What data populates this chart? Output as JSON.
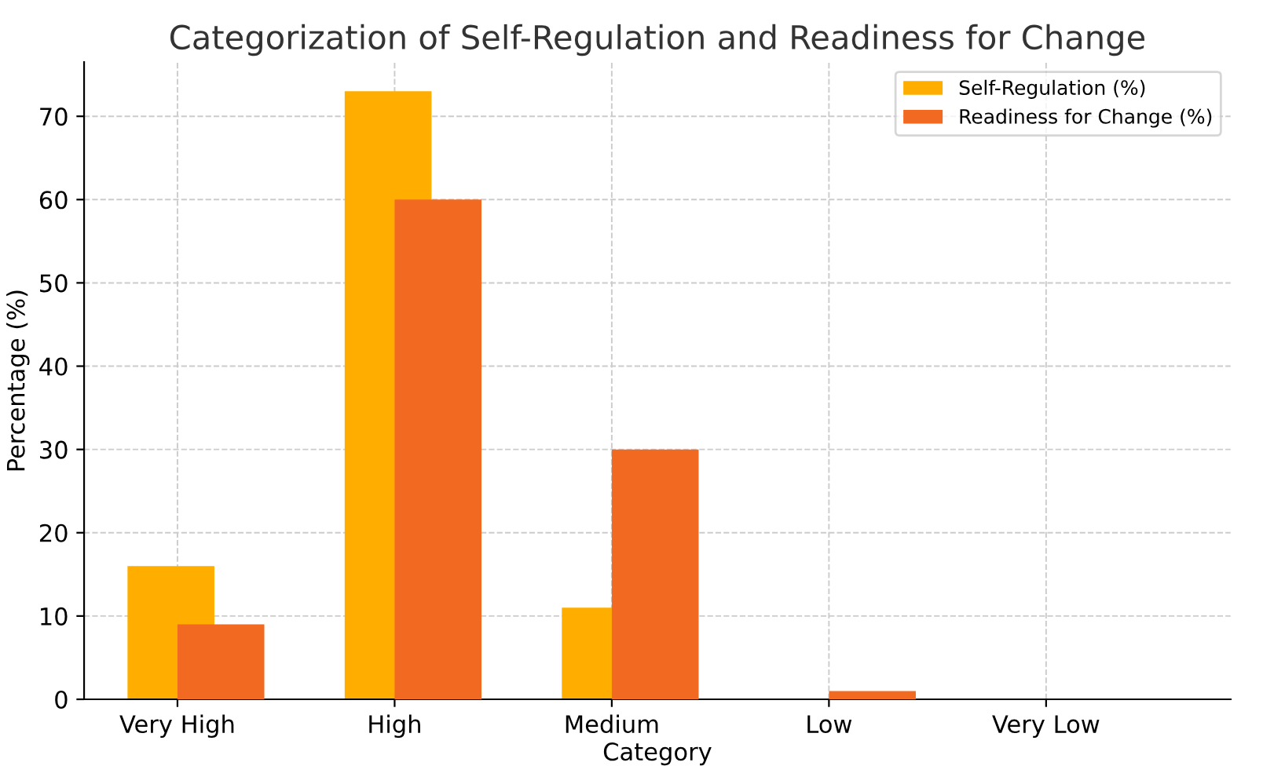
{
  "chart_data": {
    "type": "bar",
    "title": "Categorization of Self-Regulation and Readiness for Change",
    "xlabel": "Category",
    "ylabel": "Percentage (%)",
    "categories": [
      "Very High",
      "High",
      "Medium",
      "Low",
      "Very Low"
    ],
    "series": [
      {
        "name": "Self-Regulation (%)",
        "color": "#ffae00",
        "values": [
          16,
          73,
          11,
          0,
          0
        ]
      },
      {
        "name": "Readiness for Change (%)",
        "color": "#f26a22",
        "values": [
          9,
          60,
          30,
          1,
          0
        ]
      }
    ],
    "ylim": [
      0,
      76.5
    ],
    "yticks": [
      0,
      10,
      20,
      30,
      40,
      50,
      60,
      70
    ],
    "grid": true,
    "legend": "top right"
  }
}
